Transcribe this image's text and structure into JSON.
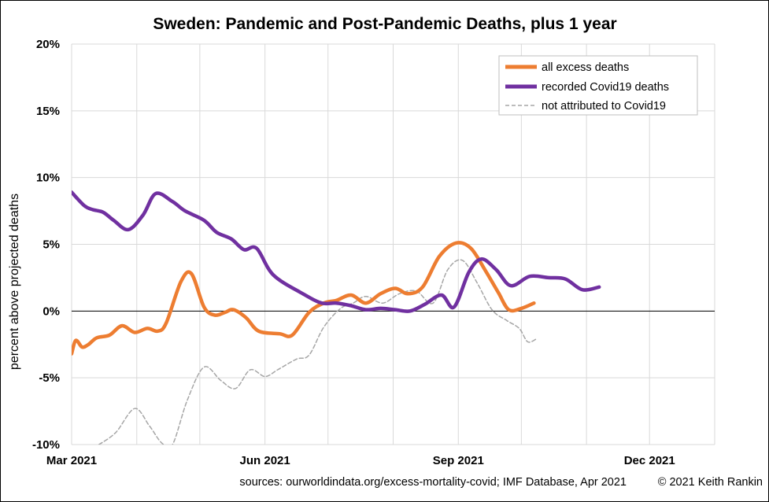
{
  "chart_data": {
    "type": "line",
    "title_bold": "Sweden",
    "title_rest": ": Pandemic and Post-Pandemic Deaths, plus 1 year",
    "ylabel": "percent above projected deaths",
    "xlabel": "",
    "ylim": [
      -10,
      20
    ],
    "yticks": [
      {
        "value": 20,
        "label": "20%"
      },
      {
        "value": 15,
        "label": "15%"
      },
      {
        "value": 10,
        "label": "10%"
      },
      {
        "value": 5,
        "label": "5%"
      },
      {
        "value": 0,
        "label": "0%"
      },
      {
        "value": -5,
        "label": "-5%"
      },
      {
        "value": -10,
        "label": "-10%"
      }
    ],
    "xlim": [
      "2021-03-01",
      "2022-01-01"
    ],
    "xticks": [
      {
        "value": "2021-03-01",
        "label": "Mar 2021"
      },
      {
        "value": "2021-06-01",
        "label": "Jun 2021"
      },
      {
        "value": "2021-09-01",
        "label": "Sep 2021"
      },
      {
        "value": "2021-12-01",
        "label": "Dec 2021"
      }
    ],
    "vgrid_months": [
      "2021-04-01",
      "2021-05-01",
      "2021-06-01",
      "2021-07-01",
      "2021-08-01",
      "2021-09-01",
      "2021-10-01",
      "2021-11-01",
      "2021-12-01",
      "2022-01-01"
    ],
    "hgrid": true,
    "legend_position": "top-right",
    "series": [
      {
        "name": "all excess deaths",
        "color": "#ED7D31",
        "style": "solid-thick",
        "points": [
          [
            "2021-03-01",
            -3.2
          ],
          [
            "2021-03-03",
            -2.2
          ],
          [
            "2021-03-06",
            -2.7
          ],
          [
            "2021-03-09",
            -2.5
          ],
          [
            "2021-03-13",
            -2.0
          ],
          [
            "2021-03-19",
            -1.8
          ],
          [
            "2021-03-25",
            -1.1
          ],
          [
            "2021-03-31",
            -1.6
          ],
          [
            "2021-04-06",
            -1.3
          ],
          [
            "2021-04-11",
            -1.5
          ],
          [
            "2021-04-15",
            -0.9
          ],
          [
            "2021-04-22",
            2.2
          ],
          [
            "2021-04-27",
            2.8
          ],
          [
            "2021-05-03",
            0.3
          ],
          [
            "2021-05-08",
            -0.3
          ],
          [
            "2021-05-13",
            -0.1
          ],
          [
            "2021-05-17",
            0.1
          ],
          [
            "2021-05-23",
            -0.5
          ],
          [
            "2021-05-29",
            -1.5
          ],
          [
            "2021-06-08",
            -1.7
          ],
          [
            "2021-06-14",
            -1.8
          ],
          [
            "2021-06-22",
            -0.1
          ],
          [
            "2021-06-29",
            0.6
          ],
          [
            "2021-07-05",
            0.8
          ],
          [
            "2021-07-12",
            1.2
          ],
          [
            "2021-07-19",
            0.6
          ],
          [
            "2021-07-26",
            1.3
          ],
          [
            "2021-08-02",
            1.7
          ],
          [
            "2021-08-08",
            1.3
          ],
          [
            "2021-08-15",
            1.8
          ],
          [
            "2021-08-23",
            4.1
          ],
          [
            "2021-08-31",
            5.1
          ],
          [
            "2021-09-07",
            4.7
          ],
          [
            "2021-09-14",
            3.0
          ],
          [
            "2021-09-20",
            1.4
          ],
          [
            "2021-09-25",
            0.1
          ],
          [
            "2021-10-01",
            0.2
          ],
          [
            "2021-10-07",
            0.6
          ]
        ]
      },
      {
        "name": "recorded Covid19 deaths",
        "color": "#7030A0",
        "style": "solid-thick",
        "points": [
          [
            "2021-03-01",
            8.9
          ],
          [
            "2021-03-07",
            7.9
          ],
          [
            "2021-03-11",
            7.6
          ],
          [
            "2021-03-16",
            7.4
          ],
          [
            "2021-03-21",
            6.8
          ],
          [
            "2021-03-28",
            6.1
          ],
          [
            "2021-04-04",
            7.2
          ],
          [
            "2021-04-10",
            8.8
          ],
          [
            "2021-04-18",
            8.2
          ],
          [
            "2021-04-24",
            7.5
          ],
          [
            "2021-05-03",
            6.8
          ],
          [
            "2021-05-09",
            5.9
          ],
          [
            "2021-05-16",
            5.4
          ],
          [
            "2021-05-22",
            4.6
          ],
          [
            "2021-05-28",
            4.7
          ],
          [
            "2021-06-05",
            2.7
          ],
          [
            "2021-06-19",
            1.3
          ],
          [
            "2021-06-28",
            0.6
          ],
          [
            "2021-07-05",
            0.6
          ],
          [
            "2021-07-12",
            0.4
          ],
          [
            "2021-07-19",
            0.1
          ],
          [
            "2021-07-26",
            0.2
          ],
          [
            "2021-08-02",
            0.1
          ],
          [
            "2021-08-09",
            0.0
          ],
          [
            "2021-08-16",
            0.5
          ],
          [
            "2021-08-24",
            1.2
          ],
          [
            "2021-08-30",
            0.3
          ],
          [
            "2021-09-06",
            2.9
          ],
          [
            "2021-09-12",
            3.9
          ],
          [
            "2021-09-19",
            3.1
          ],
          [
            "2021-09-26",
            1.9
          ],
          [
            "2021-10-05",
            2.6
          ],
          [
            "2021-10-14",
            2.5
          ],
          [
            "2021-10-22",
            2.4
          ],
          [
            "2021-10-30",
            1.6
          ],
          [
            "2021-11-07",
            1.8
          ]
        ]
      },
      {
        "name": "not attributed to Covid19",
        "color": "#A6A6A6",
        "style": "dashed",
        "points": [
          [
            "2021-03-14",
            -10.0
          ],
          [
            "2021-03-22",
            -9.1
          ],
          [
            "2021-03-31",
            -7.3
          ],
          [
            "2021-04-07",
            -8.6
          ],
          [
            "2021-04-13",
            -9.9
          ],
          [
            "2021-04-18",
            -10.0
          ],
          [
            "2021-04-25",
            -6.7
          ],
          [
            "2021-05-03",
            -4.2
          ],
          [
            "2021-05-11",
            -5.2
          ],
          [
            "2021-05-18",
            -5.8
          ],
          [
            "2021-05-25",
            -4.4
          ],
          [
            "2021-06-01",
            -4.9
          ],
          [
            "2021-06-07",
            -4.4
          ],
          [
            "2021-06-16",
            -3.6
          ],
          [
            "2021-06-22",
            -3.3
          ],
          [
            "2021-06-29",
            -1.2
          ],
          [
            "2021-07-07",
            0.2
          ],
          [
            "2021-07-13",
            0.6
          ],
          [
            "2021-07-19",
            1.1
          ],
          [
            "2021-07-27",
            0.6
          ],
          [
            "2021-08-04",
            1.3
          ],
          [
            "2021-08-12",
            1.5
          ],
          [
            "2021-08-20",
            0.6
          ],
          [
            "2021-08-27",
            3.1
          ],
          [
            "2021-09-03",
            3.8
          ],
          [
            "2021-09-10",
            2.1
          ],
          [
            "2021-09-17",
            0.1
          ],
          [
            "2021-09-24",
            -0.7
          ],
          [
            "2021-09-30",
            -1.3
          ],
          [
            "2021-10-04",
            -2.3
          ],
          [
            "2021-10-08",
            -2.1
          ]
        ]
      }
    ],
    "zero_line": true
  },
  "footer": {
    "sources": "sources:  ourworldindata.org/excess-mortality-covid;  IMF Database, Apr 2021",
    "copyright": "© 2021 Keith Rankin"
  }
}
